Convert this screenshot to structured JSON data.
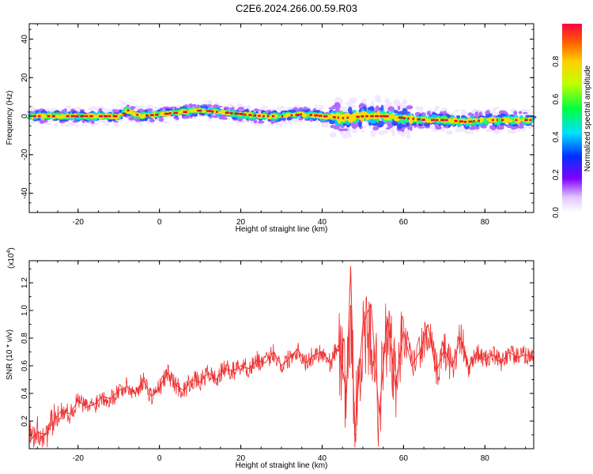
{
  "title": "C2E6.2024.266.00.59.R03",
  "chart_data": [
    {
      "type": "heatmap",
      "xlabel": "Height of straight line (km)",
      "ylabel": "Frequency (Hz)",
      "xlim": [
        -32,
        92
      ],
      "ylim": [
        -50,
        48
      ],
      "xticks": [
        -20,
        0,
        20,
        40,
        60,
        80
      ],
      "yticks": [
        -40,
        -20,
        0,
        20,
        40
      ],
      "ridge": {
        "x": [
          -32,
          -25,
          -20,
          -15,
          -10,
          -8,
          -5,
          0,
          5,
          10,
          15,
          20,
          25,
          30,
          35,
          40,
          45,
          50,
          55,
          60,
          65,
          70,
          75,
          80,
          85,
          92
        ],
        "y": [
          0,
          0,
          0,
          0,
          0,
          3,
          0,
          1,
          2,
          3,
          2,
          1,
          0,
          0,
          1,
          0,
          -1,
          0,
          0,
          -1,
          -2,
          -2,
          -3,
          -2,
          -2,
          -2
        ]
      },
      "colorbar": {
        "label": "Normalized spectral amplitude",
        "ticks": [
          0.0,
          0.2,
          0.4,
          0.6,
          0.8
        ],
        "range": [
          0,
          1
        ]
      }
    },
    {
      "type": "line",
      "xlabel": "Height of straight line (km)",
      "ylabel": "SNR (10 * v/v)",
      "scale_label": "(x10",
      "scale_exp": "4",
      "scale_close": ")",
      "xlim": [
        -32,
        92
      ],
      "ylim": [
        0.0,
        1.36
      ],
      "xticks": [
        -20,
        0,
        20,
        40,
        60,
        80
      ],
      "yticks": [
        0.2,
        0.4,
        0.6,
        0.8,
        1.0,
        1.2
      ],
      "series": [
        {
          "color": "#ee3030",
          "x": [
            -32,
            -30,
            -28,
            -26,
            -24,
            -22,
            -20,
            -18,
            -16,
            -14,
            -12,
            -10,
            -8,
            -6,
            -4,
            -2,
            0,
            2,
            4,
            6,
            8,
            10,
            12,
            14,
            16,
            18,
            20,
            22,
            24,
            26,
            28,
            30,
            32,
            34,
            36,
            38,
            40,
            42,
            44,
            46,
            47,
            48,
            50,
            52,
            54,
            56,
            58,
            60,
            62,
            64,
            66,
            68,
            70,
            72,
            74,
            76,
            78,
            80,
            82,
            84,
            86,
            88,
            90,
            92
          ],
          "values": [
            0.05,
            0.12,
            0.1,
            0.2,
            0.28,
            0.25,
            0.35,
            0.3,
            0.32,
            0.38,
            0.36,
            0.42,
            0.45,
            0.4,
            0.5,
            0.38,
            0.44,
            0.55,
            0.46,
            0.42,
            0.5,
            0.48,
            0.55,
            0.5,
            0.58,
            0.56,
            0.6,
            0.58,
            0.64,
            0.62,
            0.7,
            0.6,
            0.66,
            0.72,
            0.62,
            0.68,
            0.7,
            0.62,
            0.75,
            0.4,
            1.32,
            0.1,
            0.9,
            1.05,
            0.25,
            0.95,
            0.45,
            0.85,
            0.6,
            0.7,
            0.9,
            0.55,
            0.72,
            0.6,
            0.8,
            0.58,
            0.7,
            0.64,
            0.68,
            0.62,
            0.7,
            0.66,
            0.68,
            0.66
          ]
        }
      ]
    }
  ]
}
